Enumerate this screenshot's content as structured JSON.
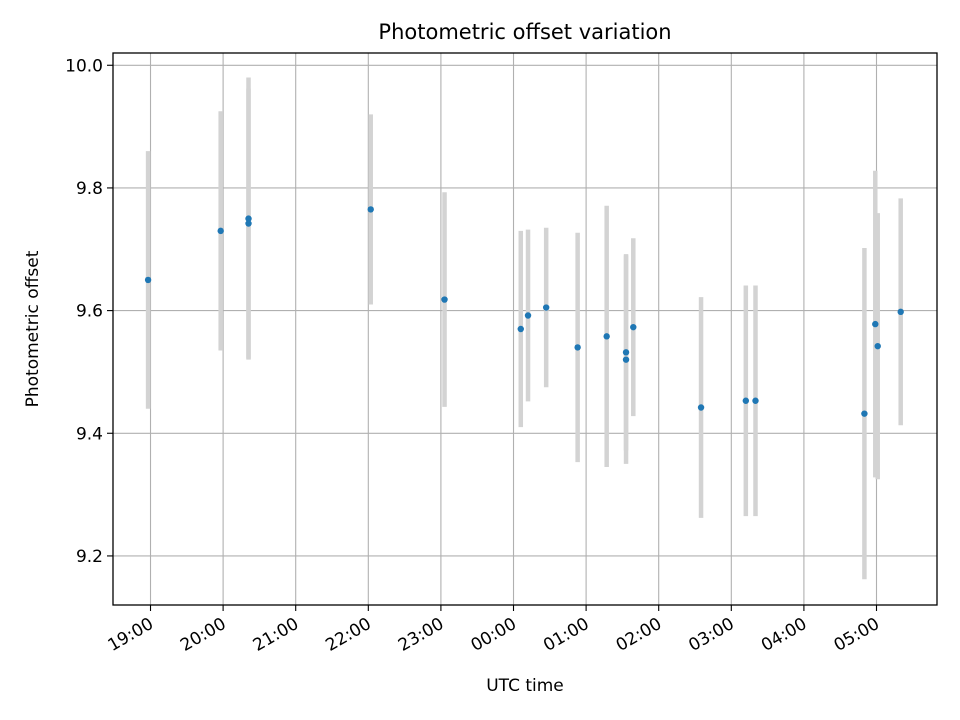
{
  "chart_data": {
    "type": "scatter",
    "title": "Photometric offset variation",
    "xlabel": "UTC time",
    "ylabel": "Photometric offset",
    "x_axis": {
      "kind": "time",
      "range": [
        "18:29",
        "05:50"
      ],
      "ticks": [
        "19:00",
        "20:00",
        "21:00",
        "22:00",
        "23:00",
        "00:00",
        "01:00",
        "02:00",
        "03:00",
        "04:00",
        "05:00"
      ]
    },
    "y_axis": {
      "range": [
        9.12,
        10.02
      ],
      "ticks": [
        9.2,
        9.4,
        9.6,
        9.8,
        10.0
      ],
      "tick_labels": [
        "9.2",
        "9.4",
        "9.6",
        "9.8",
        "10.0"
      ]
    },
    "grid": true,
    "colors": {
      "points": "#1f77b4",
      "errorbars": "#d3d3d3",
      "grid": "#b0b0b0"
    },
    "points": [
      {
        "t": "18:58",
        "y": 9.65,
        "err": 0.21
      },
      {
        "t": "19:58",
        "y": 9.73,
        "err": 0.195
      },
      {
        "t": "20:21",
        "y": 9.742,
        "err": 0.22
      },
      {
        "t": "20:21",
        "y": 9.75,
        "err": 0.23
      },
      {
        "t": "22:02",
        "y": 9.765,
        "err": 0.155
      },
      {
        "t": "23:03",
        "y": 9.618,
        "err": 0.175
      },
      {
        "t": "00:06",
        "y": 9.57,
        "err": 0.16
      },
      {
        "t": "00:12",
        "y": 9.592,
        "err": 0.14
      },
      {
        "t": "00:27",
        "y": 9.605,
        "err": 0.13
      },
      {
        "t": "00:53",
        "y": 9.54,
        "err": 0.187
      },
      {
        "t": "01:17",
        "y": 9.558,
        "err": 0.213
      },
      {
        "t": "01:33",
        "y": 9.532,
        "err": 0.16
      },
      {
        "t": "01:33",
        "y": 9.52,
        "err": 0.17
      },
      {
        "t": "01:39",
        "y": 9.573,
        "err": 0.145
      },
      {
        "t": "02:35",
        "y": 9.442,
        "err": 0.18
      },
      {
        "t": "03:12",
        "y": 9.453,
        "err": 0.188
      },
      {
        "t": "03:20",
        "y": 9.453,
        "err": 0.188
      },
      {
        "t": "04:50",
        "y": 9.432,
        "err": 0.27
      },
      {
        "t": "04:59",
        "y": 9.578,
        "err": 0.25
      },
      {
        "t": "05:01",
        "y": 9.542,
        "err": 0.217
      },
      {
        "t": "05:20",
        "y": 9.598,
        "err": 0.185
      }
    ]
  }
}
